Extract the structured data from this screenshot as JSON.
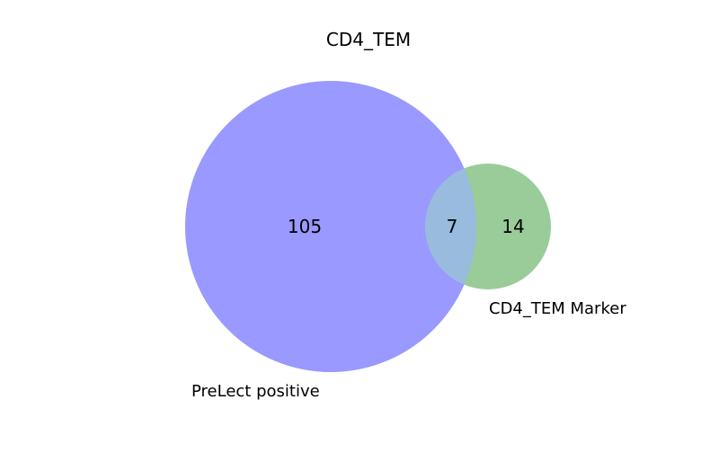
{
  "title": "CD4_TEM",
  "sets": [
    {
      "id": "A",
      "label": "PreLect positive",
      "color": "#9999ff"
    },
    {
      "id": "B",
      "label": "CD4_TEM Marker",
      "color": "#99cc99"
    }
  ],
  "regions": {
    "only_a": "105",
    "intersection": "7",
    "only_b": "14"
  },
  "colors": {
    "intersection": "#99bbdd"
  }
}
